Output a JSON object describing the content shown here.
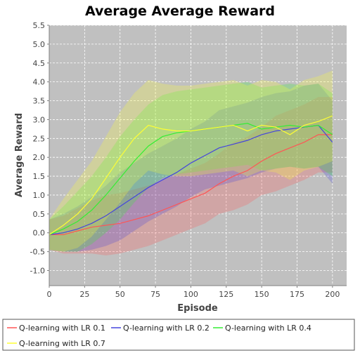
{
  "chart_data": {
    "type": "line",
    "title": "Average Average Reward",
    "xlabel": "Episode",
    "ylabel": "Average Reward",
    "xlim": [
      0,
      210
    ],
    "ylim": [
      -1.4,
      5.5
    ],
    "xticks": [
      0,
      25,
      50,
      75,
      100,
      125,
      150,
      175,
      200
    ],
    "yticks": [
      -1.0,
      -0.5,
      0.0,
      0.5,
      1.0,
      1.5,
      2.0,
      2.5,
      3.0,
      3.5,
      4.0,
      4.5,
      5.0,
      5.5
    ],
    "x_tick_labels": [
      "0",
      "25",
      "50",
      "75",
      "100",
      "125",
      "150",
      "175",
      "200"
    ],
    "y_tick_labels": [
      "-1.0",
      "-0.5",
      "0.0",
      "0.5",
      "1.0",
      "1.5",
      "2.0",
      "2.5",
      "3.0",
      "3.5",
      "4.0",
      "4.5",
      "5.0",
      "5.5"
    ],
    "grid": true,
    "background_color": "#c0c0c0",
    "legend_position": "bottom",
    "x": [
      0,
      10,
      20,
      30,
      40,
      50,
      60,
      70,
      80,
      90,
      100,
      110,
      120,
      130,
      140,
      150,
      160,
      170,
      180,
      190,
      200
    ],
    "series": [
      {
        "name": "Q-learning with LR 0.1",
        "color": "#ff5555",
        "values": [
          -0.05,
          -0.05,
          0.05,
          0.15,
          0.2,
          0.25,
          0.35,
          0.45,
          0.6,
          0.75,
          0.9,
          1.05,
          1.3,
          1.5,
          1.65,
          1.9,
          2.1,
          2.25,
          2.4,
          2.6,
          2.6
        ],
        "band": [
          0.4,
          0.5,
          0.6,
          0.7,
          0.8,
          0.8,
          0.8,
          0.8,
          0.8,
          0.8,
          0.8,
          0.8,
          0.8,
          0.9,
          0.9,
          0.9,
          1.0,
          1.0,
          1.0,
          1.0,
          1.0
        ]
      },
      {
        "name": "Q-learning with LR 0.2",
        "color": "#4444dd",
        "values": [
          -0.05,
          0.0,
          0.1,
          0.25,
          0.45,
          0.7,
          0.95,
          1.2,
          1.4,
          1.6,
          1.85,
          2.05,
          2.25,
          2.35,
          2.45,
          2.6,
          2.7,
          2.75,
          2.8,
          2.85,
          2.4
        ],
        "band": [
          0.4,
          0.5,
          0.6,
          0.7,
          0.8,
          0.9,
          0.9,
          0.9,
          0.9,
          0.9,
          0.9,
          0.9,
          1.0,
          1.0,
          1.0,
          1.0,
          1.0,
          1.0,
          1.1,
          1.1,
          1.1
        ]
      },
      {
        "name": "Q-learning with LR 0.4",
        "color": "#33ee33",
        "values": [
          -0.05,
          0.1,
          0.3,
          0.6,
          1.0,
          1.45,
          1.9,
          2.3,
          2.55,
          2.65,
          2.7,
          2.75,
          2.8,
          2.85,
          2.9,
          2.75,
          2.8,
          2.85,
          2.8,
          2.85,
          2.6
        ],
        "band": [
          0.4,
          0.6,
          0.8,
          0.9,
          1.0,
          1.1,
          1.1,
          1.1,
          1.1,
          1.1,
          1.1,
          1.1,
          1.1,
          1.1,
          1.1,
          1.1,
          1.1,
          1.1,
          1.1,
          1.1,
          1.1
        ]
      },
      {
        "name": "Q-learning with LR 0.7",
        "color": "#ffff33",
        "values": [
          -0.05,
          0.2,
          0.5,
          0.9,
          1.45,
          2.0,
          2.5,
          2.85,
          2.75,
          2.7,
          2.7,
          2.75,
          2.8,
          2.85,
          2.7,
          2.85,
          2.8,
          2.6,
          2.85,
          2.95,
          3.1
        ],
        "band": [
          0.4,
          0.7,
          0.9,
          1.0,
          1.1,
          1.2,
          1.2,
          1.2,
          1.2,
          1.2,
          1.2,
          1.2,
          1.2,
          1.2,
          1.2,
          1.2,
          1.2,
          1.2,
          1.2,
          1.2,
          1.2
        ]
      }
    ]
  },
  "legend": {
    "items": [
      {
        "label": "Q-learning with LR 0.1",
        "color": "#ff5555"
      },
      {
        "label": "Q-learning with LR 0.2",
        "color": "#4444dd"
      },
      {
        "label": "Q-learning with LR 0.4",
        "color": "#33ee33"
      },
      {
        "label": "Q-learning with LR 0.7",
        "color": "#ffff33"
      }
    ]
  }
}
